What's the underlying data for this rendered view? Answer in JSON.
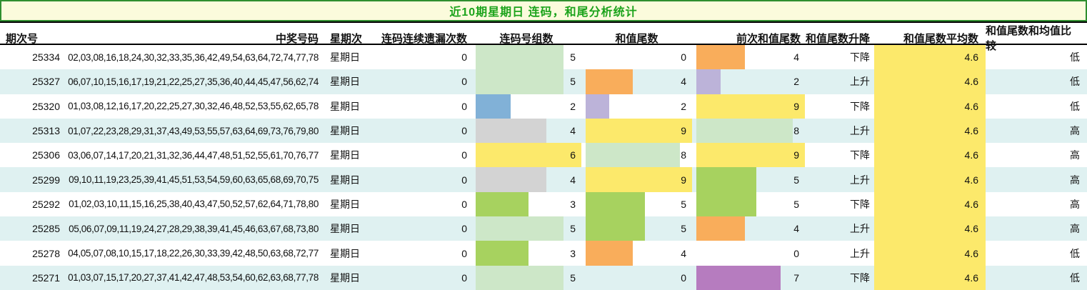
{
  "title": "近10期星期日 连码，和尾分析统计",
  "colors": {
    "title_bg": "#fbfbdc",
    "title_border": "#2f8f2f",
    "title_text": "#1ba31b",
    "alt_row_bg": "#dff1f1",
    "avg_column_bg": "#fce96b",
    "bar_pale_green": "#cde7c8",
    "bar_bright_green": "#a7d25f",
    "bar_blue": "#81b1d7",
    "bar_gray": "#d3d3d3",
    "bar_yellow": "#fce96b",
    "bar_orange": "#f9ad5b",
    "bar_light_purple": "#bcb3d9",
    "bar_magenta": "#b67cbf"
  },
  "table": {
    "headers": [
      "期次号",
      "中奖号码",
      "星期次",
      "连码连续遗漏次数",
      "连码号组数",
      "和值尾数",
      "前次和值尾数",
      "和值尾数升降",
      "和值尾数平均数",
      "和值尾数和均值比较"
    ],
    "bar_scales": {
      "groups": 6,
      "tail": 9
    },
    "rows": [
      {
        "period": "25334",
        "numbers": "02,03,08,16,18,24,30,32,33,35,36,42,49,54,63,64,72,74,77,78",
        "weekday": "星期日",
        "miss": "0",
        "groups": {
          "value": "5",
          "color": "#cde7c8"
        },
        "tail": {
          "value": "0",
          "color": null
        },
        "prev": {
          "value": "4",
          "color": "#f9ad5b"
        },
        "trend": "下降",
        "avg": "4.6",
        "compare": "低"
      },
      {
        "period": "25327",
        "numbers": "06,07,10,15,16,17,19,21,22,25,27,35,36,40,44,45,47,56,62,74",
        "weekday": "星期日",
        "miss": "0",
        "groups": {
          "value": "5",
          "color": "#cde7c8"
        },
        "tail": {
          "value": "4",
          "color": "#f9ad5b"
        },
        "prev": {
          "value": "2",
          "color": "#bcb3d9"
        },
        "trend": "上升",
        "avg": "4.6",
        "compare": "低"
      },
      {
        "period": "25320",
        "numbers": "01,03,08,12,16,17,20,22,25,27,30,32,46,48,52,53,55,62,65,78",
        "weekday": "星期日",
        "miss": "0",
        "groups": {
          "value": "2",
          "color": "#81b1d7"
        },
        "tail": {
          "value": "2",
          "color": "#bcb3d9"
        },
        "prev": {
          "value": "9",
          "color": "#fce96b"
        },
        "trend": "下降",
        "avg": "4.6",
        "compare": "低"
      },
      {
        "period": "25313",
        "numbers": "01,07,22,23,28,29,31,37,43,49,53,55,57,63,64,69,73,76,79,80",
        "weekday": "星期日",
        "miss": "0",
        "groups": {
          "value": "4",
          "color": "#d3d3d3"
        },
        "tail": {
          "value": "9",
          "color": "#fce96b"
        },
        "prev": {
          "value": "8",
          "color": "#cde7c8"
        },
        "trend": "上升",
        "avg": "4.6",
        "compare": "高"
      },
      {
        "period": "25306",
        "numbers": "03,06,07,14,17,20,21,31,32,36,44,47,48,51,52,55,61,70,76,77",
        "weekday": "星期日",
        "miss": "0",
        "groups": {
          "value": "6",
          "color": "#fce96b"
        },
        "tail": {
          "value": "8",
          "color": "#cde7c8"
        },
        "prev": {
          "value": "9",
          "color": "#fce96b"
        },
        "trend": "下降",
        "avg": "4.6",
        "compare": "高"
      },
      {
        "period": "25299",
        "numbers": "09,10,11,19,23,25,39,41,45,51,53,54,59,60,63,65,68,69,70,75",
        "weekday": "星期日",
        "miss": "0",
        "groups": {
          "value": "4",
          "color": "#d3d3d3"
        },
        "tail": {
          "value": "9",
          "color": "#fce96b"
        },
        "prev": {
          "value": "5",
          "color": "#a7d25f"
        },
        "trend": "上升",
        "avg": "4.6",
        "compare": "高"
      },
      {
        "period": "25292",
        "numbers": "01,02,03,10,11,15,16,25,38,40,43,47,50,52,57,62,64,71,78,80",
        "weekday": "星期日",
        "miss": "0",
        "groups": {
          "value": "3",
          "color": "#a7d25f"
        },
        "tail": {
          "value": "5",
          "color": "#a7d25f"
        },
        "prev": {
          "value": "5",
          "color": "#a7d25f"
        },
        "trend": "下降",
        "avg": "4.6",
        "compare": "高"
      },
      {
        "period": "25285",
        "numbers": "05,06,07,09,11,19,24,27,28,29,38,39,41,45,46,63,67,68,73,80",
        "weekday": "星期日",
        "miss": "0",
        "groups": {
          "value": "5",
          "color": "#cde7c8"
        },
        "tail": {
          "value": "5",
          "color": "#a7d25f"
        },
        "prev": {
          "value": "4",
          "color": "#f9ad5b"
        },
        "trend": "上升",
        "avg": "4.6",
        "compare": "高"
      },
      {
        "period": "25278",
        "numbers": "04,05,07,08,10,15,17,18,22,26,30,33,39,42,48,50,63,68,72,77",
        "weekday": "星期日",
        "miss": "0",
        "groups": {
          "value": "3",
          "color": "#a7d25f"
        },
        "tail": {
          "value": "4",
          "color": "#f9ad5b"
        },
        "prev": {
          "value": "0",
          "color": null
        },
        "trend": "上升",
        "avg": "4.6",
        "compare": "低"
      },
      {
        "period": "25271",
        "numbers": "01,03,07,15,17,20,27,37,41,42,47,48,53,54,60,62,63,68,77,78",
        "weekday": "星期日",
        "miss": "0",
        "groups": {
          "value": "5",
          "color": "#cde7c8"
        },
        "tail": {
          "value": "0",
          "color": null
        },
        "prev": {
          "value": "7",
          "color": "#b67cbf"
        },
        "trend": "下降",
        "avg": "4.6",
        "compare": "低"
      }
    ]
  }
}
